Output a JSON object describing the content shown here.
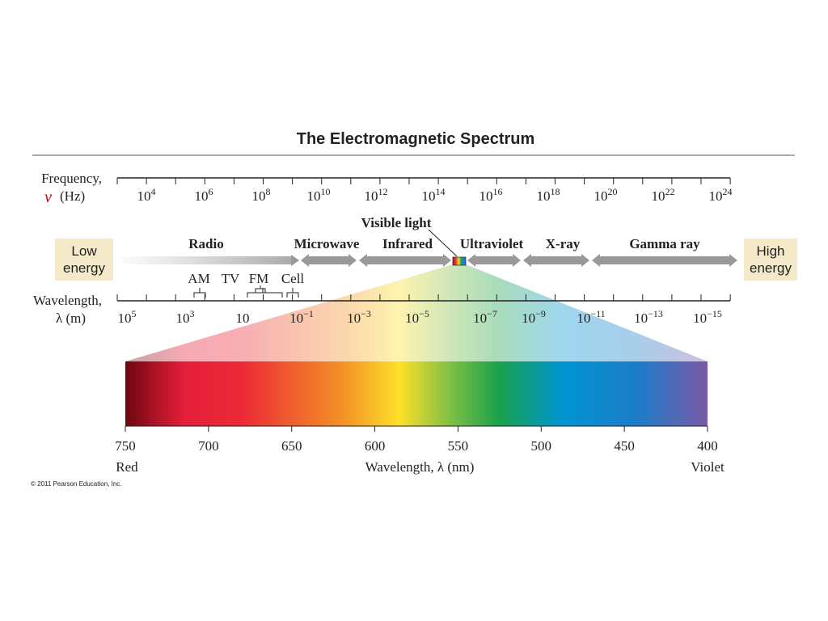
{
  "title": "The Electromagnetic Spectrum",
  "frequency_axis": {
    "label": "Frequency,",
    "symbol": "ν",
    "unit": "(Hz)",
    "ticks": [
      {
        "base": "10",
        "exp": "4"
      },
      {
        "base": "10",
        "exp": "6"
      },
      {
        "base": "10",
        "exp": "8"
      },
      {
        "base": "10",
        "exp": "10"
      },
      {
        "base": "10",
        "exp": "12"
      },
      {
        "base": "10",
        "exp": "14"
      },
      {
        "base": "10",
        "exp": "16"
      },
      {
        "base": "10",
        "exp": "18"
      },
      {
        "base": "10",
        "exp": "20"
      },
      {
        "base": "10",
        "exp": "22"
      },
      {
        "base": "10",
        "exp": "24"
      }
    ]
  },
  "energy": {
    "low": [
      "Low",
      "energy"
    ],
    "high": [
      "High",
      "energy"
    ]
  },
  "bands": [
    "Radio",
    "Microwave",
    "Infrared",
    "Ultraviolet",
    "X-ray",
    "Gamma ray"
  ],
  "visible_label": "Visible light",
  "radio_uses": [
    "AM",
    "TV",
    "FM",
    "Cell"
  ],
  "wavelength_axis": {
    "label": "Wavelength,",
    "unit": "λ (m)",
    "ticks": [
      {
        "base": "10",
        "exp": "5"
      },
      {
        "base": "10",
        "exp": "3"
      },
      {
        "base": "10"
      },
      {
        "base": "10",
        "exp": "−1"
      },
      {
        "base": "10",
        "exp": "−3"
      },
      {
        "base": "10",
        "exp": "−5"
      },
      {
        "base": "10",
        "exp": "−7"
      },
      {
        "base": "10",
        "exp": "−9"
      },
      {
        "base": "10",
        "exp": "−11"
      },
      {
        "base": "10",
        "exp": "−13"
      },
      {
        "base": "10",
        "exp": "−15"
      }
    ]
  },
  "visible_spectrum": {
    "ticks": [
      750,
      700,
      650,
      600,
      550,
      500,
      450,
      400
    ],
    "left_label": "Red",
    "axis_label": "Wavelength, λ (nm)",
    "right_label": "Violet"
  },
  "copyright": "© 2011 Pearson Education, Inc."
}
